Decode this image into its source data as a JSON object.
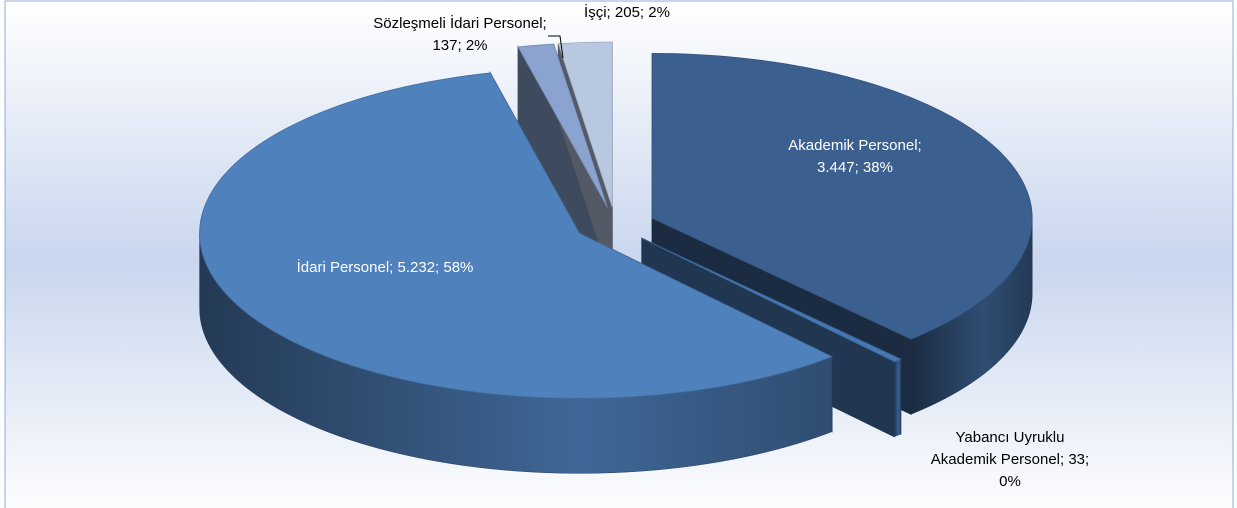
{
  "chart_data": {
    "type": "pie3d",
    "categories": [
      "Akademik Personel",
      "Yabancı Uyruklu Akademik Personel",
      "İdari Personel",
      "Sözleşmeli İdari Personel",
      "İşçi"
    ],
    "values": [
      3447,
      33,
      5232,
      137,
      205
    ],
    "value_labels": [
      [
        "Akademik Personel;",
        "3.447; 38%"
      ],
      [
        "Yabancı Uyruklu",
        "Akademik Personel; 33;",
        "0%"
      ],
      [
        "İdari Personel; 5.232; 58%"
      ],
      [
        "Sözleşmeli İdari Personel;",
        "137; 2%"
      ],
      [
        "İşçi; 205; 2%"
      ]
    ],
    "colors": [
      "#3b6090",
      "#4677b3",
      "#4f81bd",
      "#8aa4cf",
      "#b9c8e1"
    ]
  }
}
